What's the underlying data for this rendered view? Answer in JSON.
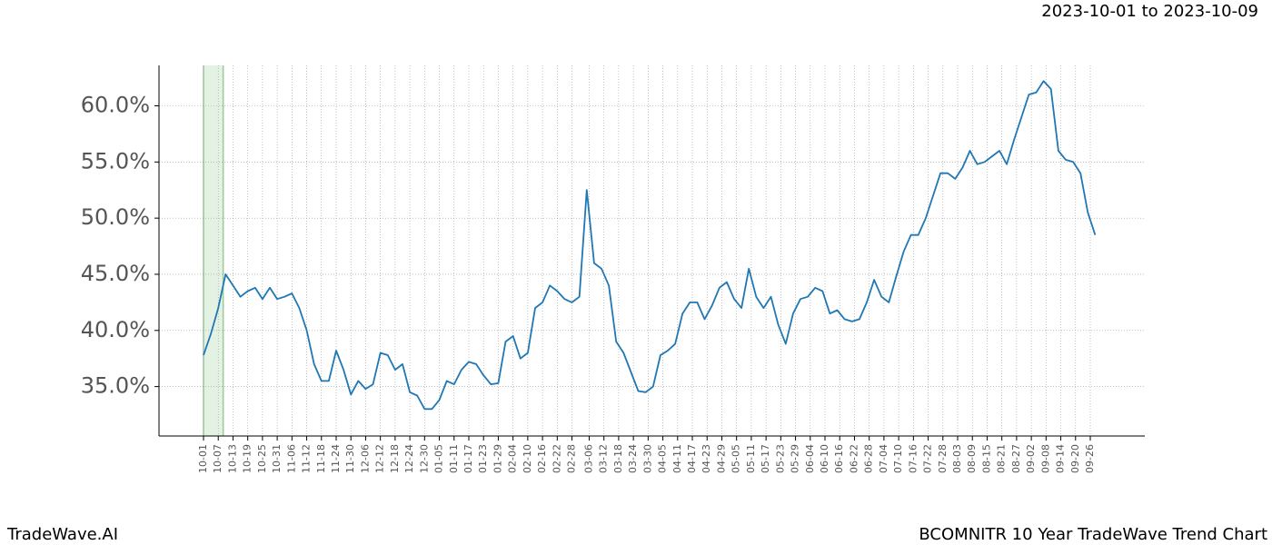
{
  "header": {
    "range": "2023-10-01 to 2023-10-09"
  },
  "footer": {
    "left": "TradeWave.AI",
    "right": "BCOMNITR 10 Year TradeWave Trend Chart"
  },
  "chart_data": {
    "type": "line",
    "color": "#1f77b4",
    "grid": true,
    "highlight": {
      "from": "10-01",
      "to": "10-09"
    },
    "ylim": [
      30.6,
      63.6
    ],
    "yticks": [
      {
        "value": 35,
        "label": "35.0%"
      },
      {
        "value": 40,
        "label": "40.0%"
      },
      {
        "value": 45,
        "label": "45.0%"
      },
      {
        "value": 50,
        "label": "50.0%"
      },
      {
        "value": 55,
        "label": "55.0%"
      },
      {
        "value": 60,
        "label": "60.0%"
      }
    ],
    "xticks": [
      "10-01",
      "10-07",
      "10-13",
      "10-19",
      "10-25",
      "10-31",
      "11-06",
      "11-12",
      "11-18",
      "11-24",
      "11-30",
      "12-06",
      "12-12",
      "12-18",
      "12-24",
      "12-30",
      "01-05",
      "01-11",
      "01-17",
      "01-23",
      "01-29",
      "02-04",
      "02-10",
      "02-16",
      "02-22",
      "02-28",
      "03-06",
      "03-12",
      "03-18",
      "03-24",
      "03-30",
      "04-05",
      "04-11",
      "04-17",
      "04-23",
      "04-29",
      "05-05",
      "05-11",
      "05-17",
      "05-23",
      "05-29",
      "06-04",
      "06-10",
      "06-16",
      "06-22",
      "06-28",
      "07-04",
      "07-10",
      "07-16",
      "07-22",
      "07-28",
      "08-03",
      "08-09",
      "08-15",
      "08-21",
      "08-27",
      "09-02",
      "09-08",
      "09-14",
      "09-20",
      "09-26"
    ],
    "x": [
      "10-01",
      "10-04",
      "10-07",
      "10-10",
      "10-13",
      "10-16",
      "10-19",
      "10-22",
      "10-25",
      "10-28",
      "10-31",
      "11-03",
      "11-06",
      "11-09",
      "11-12",
      "11-15",
      "11-18",
      "11-21",
      "11-24",
      "11-27",
      "11-30",
      "12-03",
      "12-06",
      "12-09",
      "12-12",
      "12-15",
      "12-18",
      "12-21",
      "12-24",
      "12-27",
      "12-30",
      "01-02",
      "01-05",
      "01-08",
      "01-11",
      "01-14",
      "01-17",
      "01-20",
      "01-23",
      "01-26",
      "01-29",
      "02-01",
      "02-04",
      "02-07",
      "02-10",
      "02-13",
      "02-16",
      "02-19",
      "02-22",
      "02-25",
      "02-28",
      "03-02",
      "03-05",
      "03-08",
      "03-11",
      "03-14",
      "03-17",
      "03-20",
      "03-23",
      "03-26",
      "03-29",
      "04-01",
      "04-04",
      "04-07",
      "04-10",
      "04-13",
      "04-16",
      "04-19",
      "04-22",
      "04-25",
      "04-28",
      "05-01",
      "05-04",
      "05-07",
      "05-10",
      "05-13",
      "05-16",
      "05-19",
      "05-22",
      "05-25",
      "05-28",
      "05-31",
      "06-03",
      "06-06",
      "06-09",
      "06-12",
      "06-15",
      "06-18",
      "06-21",
      "06-24",
      "06-27",
      "06-30",
      "07-03",
      "07-06",
      "07-09",
      "07-12",
      "07-15",
      "07-18",
      "07-21",
      "07-24",
      "07-27",
      "07-30",
      "08-02",
      "08-05",
      "08-08",
      "08-11",
      "08-14",
      "08-17",
      "08-20",
      "08-23",
      "08-26",
      "08-29",
      "09-01",
      "09-04",
      "09-07",
      "09-10",
      "09-13",
      "09-16",
      "09-19",
      "09-22",
      "09-25",
      "09-28"
    ],
    "values": [
      37.8,
      39.7,
      42,
      45,
      44,
      43,
      43.5,
      43.8,
      42.8,
      43.8,
      42.8,
      43,
      43.3,
      42,
      40,
      37,
      35.5,
      35.5,
      38.2,
      36.5,
      34.3,
      35.5,
      34.8,
      35.2,
      38,
      37.8,
      36.5,
      37,
      34.5,
      34.2,
      33,
      33,
      33.8,
      35.5,
      35.2,
      36.5,
      37.2,
      37,
      36,
      35.2,
      35.3,
      39,
      39.5,
      37.5,
      38,
      42,
      42.5,
      44,
      43.5,
      42.8,
      42.5,
      43,
      52.5,
      46,
      45.5,
      44,
      39,
      38,
      36.3,
      34.6,
      34.5,
      35,
      37.8,
      38.2,
      38.8,
      41.5,
      42.5,
      42.5,
      41,
      42.2,
      43.8,
      44.3,
      42.8,
      42,
      45.5,
      43,
      42,
      43,
      40.5,
      38.8,
      41.5,
      42.8,
      43,
      43.8,
      43.5,
      41.5,
      41.8,
      41,
      40.8,
      41,
      42.5,
      44.5,
      43,
      42.5,
      44.8,
      47,
      48.5,
      48.5,
      50,
      52,
      54,
      54,
      53.5,
      54.5,
      56,
      54.8,
      55,
      55.5,
      56,
      54.8,
      57,
      59,
      61,
      61.2,
      62.2,
      61.5,
      56,
      55.2,
      55,
      54,
      50.5,
      48.5
    ]
  }
}
